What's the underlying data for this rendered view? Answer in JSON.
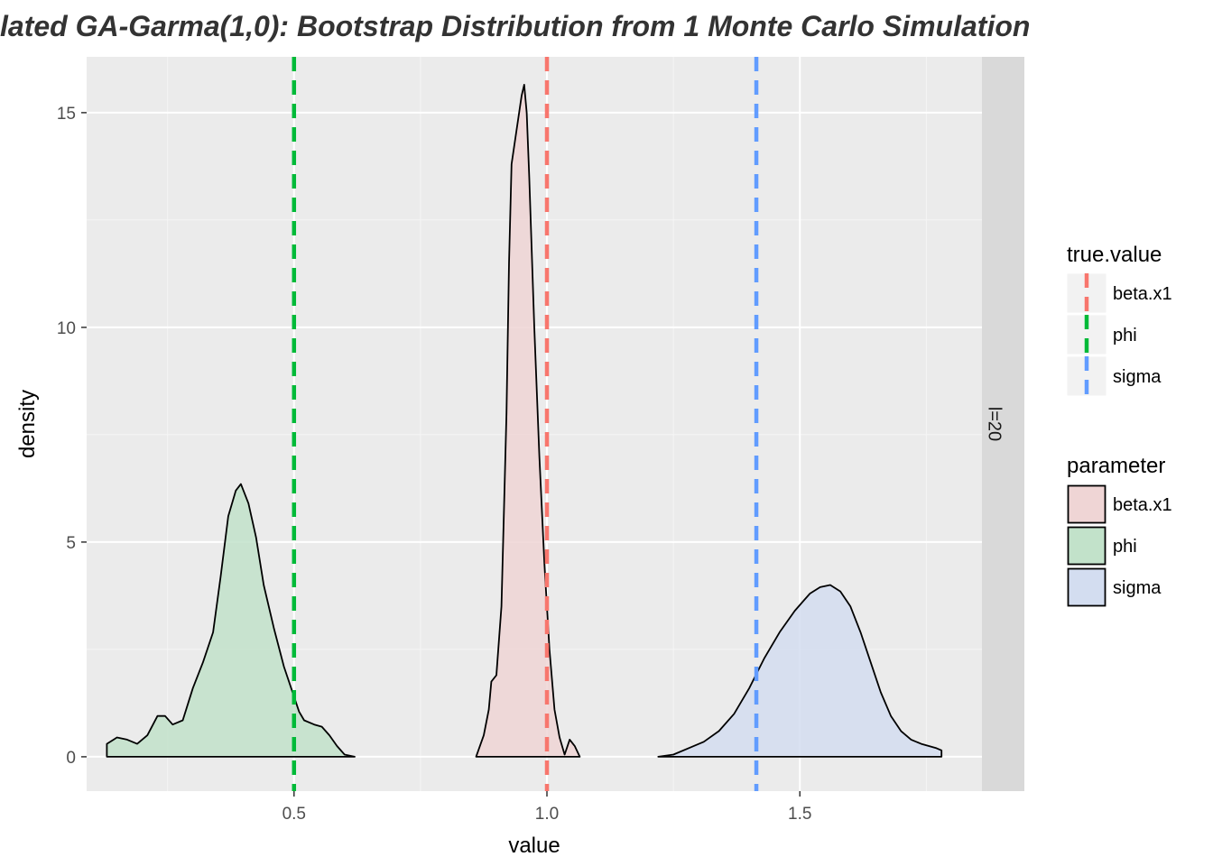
{
  "chart_data": {
    "type": "area",
    "title": "lated GA-Garma(1,0):   Bootstrap Distribution from  1 Monte Carlo Simulation",
    "xlabel": "value",
    "ylabel": "density",
    "xlim": [
      0.09,
      1.86
    ],
    "ylim": [
      -0.8,
      16.3
    ],
    "x_ticks": [
      0.5,
      1.0,
      1.5
    ],
    "x_tick_labels": [
      "0.5",
      "1.0",
      "1.5"
    ],
    "y_ticks": [
      0,
      5,
      10,
      15
    ],
    "y_tick_labels": [
      "0",
      "5",
      "10",
      "15"
    ],
    "grid": true,
    "facet_label": "l=20",
    "series": [
      {
        "name": "phi",
        "fill": "#c2e2ca",
        "points": [
          [
            0.13,
            0.3
          ],
          [
            0.15,
            0.45
          ],
          [
            0.17,
            0.4
          ],
          [
            0.19,
            0.3
          ],
          [
            0.21,
            0.5
          ],
          [
            0.23,
            0.95
          ],
          [
            0.245,
            0.95
          ],
          [
            0.26,
            0.75
          ],
          [
            0.28,
            0.85
          ],
          [
            0.3,
            1.6
          ],
          [
            0.32,
            2.2
          ],
          [
            0.34,
            2.9
          ],
          [
            0.355,
            4.2
          ],
          [
            0.37,
            5.6
          ],
          [
            0.385,
            6.2
          ],
          [
            0.395,
            6.35
          ],
          [
            0.41,
            5.9
          ],
          [
            0.425,
            5.1
          ],
          [
            0.44,
            4.0
          ],
          [
            0.46,
            3.0
          ],
          [
            0.48,
            2.1
          ],
          [
            0.5,
            1.4
          ],
          [
            0.51,
            1.05
          ],
          [
            0.52,
            0.85
          ],
          [
            0.54,
            0.75
          ],
          [
            0.555,
            0.7
          ],
          [
            0.57,
            0.5
          ],
          [
            0.585,
            0.25
          ],
          [
            0.6,
            0.05
          ],
          [
            0.62,
            0.0
          ]
        ]
      },
      {
        "name": "beta.x1",
        "fill": "#efd5d5",
        "points": [
          [
            0.86,
            0.0
          ],
          [
            0.875,
            0.5
          ],
          [
            0.885,
            1.1
          ],
          [
            0.89,
            1.75
          ],
          [
            0.9,
            1.9
          ],
          [
            0.91,
            3.5
          ],
          [
            0.92,
            8.0
          ],
          [
            0.925,
            11.5
          ],
          [
            0.93,
            13.8
          ],
          [
            0.94,
            14.6
          ],
          [
            0.95,
            15.4
          ],
          [
            0.955,
            15.65
          ],
          [
            0.96,
            15.0
          ],
          [
            0.965,
            13.5
          ],
          [
            0.975,
            10.0
          ],
          [
            0.985,
            7.0
          ],
          [
            0.995,
            4.5
          ],
          [
            1.005,
            2.5
          ],
          [
            1.015,
            1.1
          ],
          [
            1.025,
            0.45
          ],
          [
            1.035,
            0.05
          ],
          [
            1.045,
            0.4
          ],
          [
            1.055,
            0.25
          ],
          [
            1.065,
            0.0
          ]
        ]
      },
      {
        "name": "sigma",
        "fill": "#d3ddf0",
        "points": [
          [
            1.22,
            0.0
          ],
          [
            1.25,
            0.05
          ],
          [
            1.28,
            0.2
          ],
          [
            1.31,
            0.35
          ],
          [
            1.34,
            0.6
          ],
          [
            1.37,
            1.0
          ],
          [
            1.4,
            1.6
          ],
          [
            1.43,
            2.3
          ],
          [
            1.46,
            2.9
          ],
          [
            1.49,
            3.4
          ],
          [
            1.52,
            3.8
          ],
          [
            1.54,
            3.95
          ],
          [
            1.56,
            4.0
          ],
          [
            1.58,
            3.85
          ],
          [
            1.6,
            3.5
          ],
          [
            1.62,
            2.9
          ],
          [
            1.64,
            2.2
          ],
          [
            1.66,
            1.5
          ],
          [
            1.68,
            0.95
          ],
          [
            1.7,
            0.6
          ],
          [
            1.72,
            0.4
          ],
          [
            1.74,
            0.3
          ],
          [
            1.77,
            0.2
          ],
          [
            1.78,
            0.15
          ]
        ]
      }
    ],
    "true_values": [
      {
        "name": "beta.x1",
        "x": 1.0,
        "color": "#f8766d"
      },
      {
        "name": "phi",
        "x": 0.5,
        "color": "#00ba38"
      },
      {
        "name": "sigma",
        "x": 1.414,
        "color": "#619cff"
      }
    ],
    "legend_true_value": {
      "title": "true.value",
      "items": [
        {
          "label": "beta.x1",
          "color": "#f8766d"
        },
        {
          "label": "phi",
          "color": "#00ba38"
        },
        {
          "label": "sigma",
          "color": "#619cff"
        }
      ]
    },
    "legend_parameter": {
      "title": "parameter",
      "items": [
        {
          "label": "beta.x1",
          "fill": "#efd5d5"
        },
        {
          "label": "phi",
          "fill": "#c2e2ca"
        },
        {
          "label": "sigma",
          "fill": "#d3ddf0"
        }
      ]
    },
    "legend_placement": "right"
  }
}
